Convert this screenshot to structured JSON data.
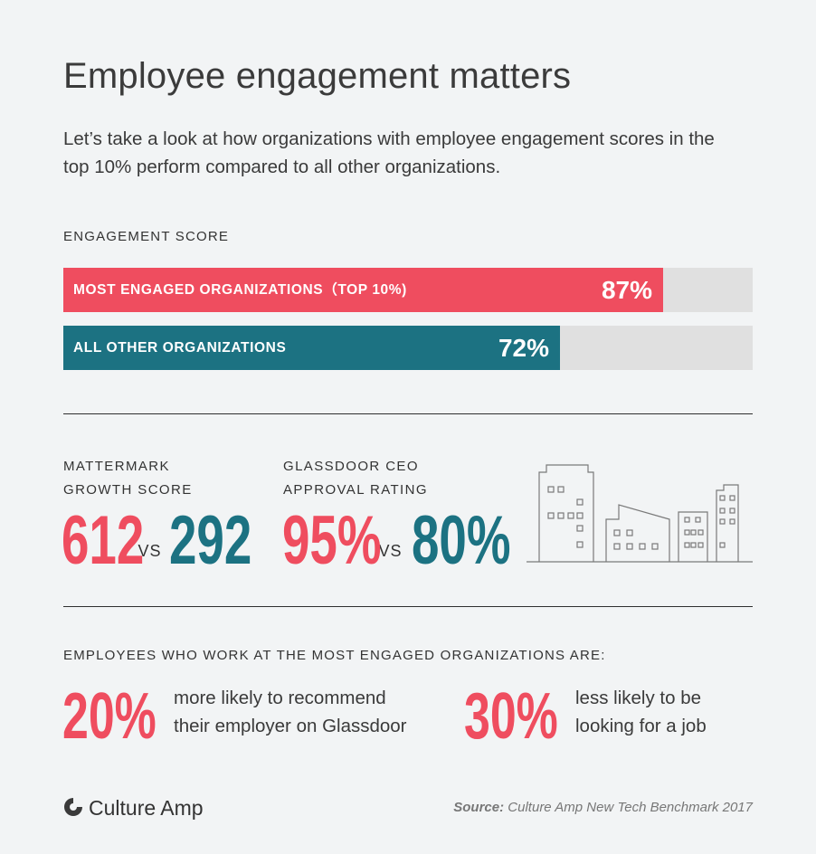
{
  "header": {
    "title": "Employee engagement matters",
    "subtitle": "Let’s take a look at how organizations with employee engagement scores in the top 10% perform compared to all other organizations."
  },
  "chart_data": {
    "type": "bar",
    "orientation": "horizontal",
    "title": "ENGAGEMENT SCORE",
    "categories": [
      "MOST ENGAGED ORGANIZATIONS（TOP 10%)",
      "ALL OTHER ORGANIZATIONS"
    ],
    "values": [
      87,
      72
    ],
    "value_labels": [
      "87%",
      "72%"
    ],
    "colors": [
      "#ef4d5f",
      "#1c7282"
    ],
    "xlim": [
      0,
      100
    ],
    "grid": false
  },
  "metrics": [
    {
      "label_line1": "MATTERMARK",
      "label_line2": "GROWTH SCORE",
      "top": "612",
      "vs": "VS",
      "other": "292"
    },
    {
      "label_line1": "GLASSDOOR CEO",
      "label_line2": "APPROVAL RATING",
      "top": "95%",
      "vs": "VS",
      "other": "80%"
    }
  ],
  "employees": {
    "heading": "EMPLOYEES WHO WORK AT THE MOST ENGAGED ORGANIZATIONS ARE:",
    "stats": [
      {
        "value": "20%",
        "line1": "more likely to recommend",
        "line2": "their employer on Glassdoor"
      },
      {
        "value": "30%",
        "line1": "less likely to be",
        "line2": "looking for a job"
      }
    ]
  },
  "footer": {
    "logo": "Culture Amp",
    "source_label": "Source:",
    "source_text": "Culture Amp New Tech Benchmark 2017"
  },
  "colors": {
    "accent_red": "#ef4d5f",
    "accent_teal": "#1c7282",
    "track": "#e0e0e0",
    "background": "#f2f4f5"
  },
  "icons": [
    "buildings-illustration",
    "culture-amp-logo-icon"
  ]
}
